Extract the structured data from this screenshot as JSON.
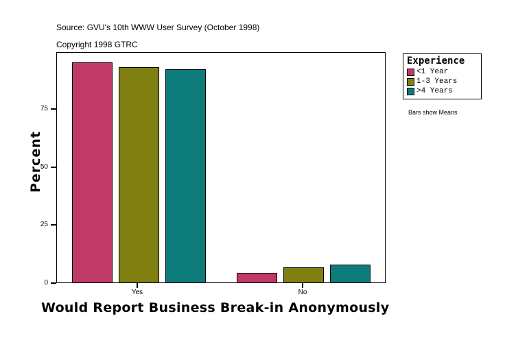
{
  "header": {
    "source": "Source: GVU's 10th WWW User Survey (October 1998)",
    "copyright": "Copyright 1998 GTRC"
  },
  "legend": {
    "title": "Experience",
    "items": [
      {
        "label": "<1 Year",
        "color": "#c03a68"
      },
      {
        "label": "1-3 Years",
        "color": "#7f7f12"
      },
      {
        "label": ">4 Years",
        "color": "#0e7b7b"
      }
    ],
    "note": "Bars show Means"
  },
  "axes": {
    "ylabel": "Percent",
    "xlabel": "Would Report Business Break-in Anonymously",
    "yticks": [
      "0",
      "25",
      "50",
      "75"
    ],
    "xticks": [
      "Yes",
      "No"
    ]
  },
  "chart_data": {
    "type": "bar",
    "title": "",
    "categories": [
      "Yes",
      "No"
    ],
    "series": [
      {
        "name": "<1 Year",
        "color": "#c03a68",
        "values": [
          95.2,
          4.4
        ]
      },
      {
        "name": "1-3 Years",
        "color": "#7f7f12",
        "values": [
          93.0,
          6.8
        ]
      },
      {
        "name": ">4 Years",
        "color": "#0e7b7b",
        "values": [
          92.1,
          8.0
        ]
      }
    ],
    "xlabel": "Would Report Business Break-in Anonymously",
    "ylabel": "Percent",
    "ylim": [
      0,
      99.5
    ],
    "yticks": [
      0,
      25,
      50,
      75
    ],
    "grid": false,
    "legend_position": "right",
    "annotations": [
      "Bars show Means",
      "Source: GVU's 10th WWW User Survey (October 1998)",
      "Copyright 1998 GTRC"
    ]
  }
}
